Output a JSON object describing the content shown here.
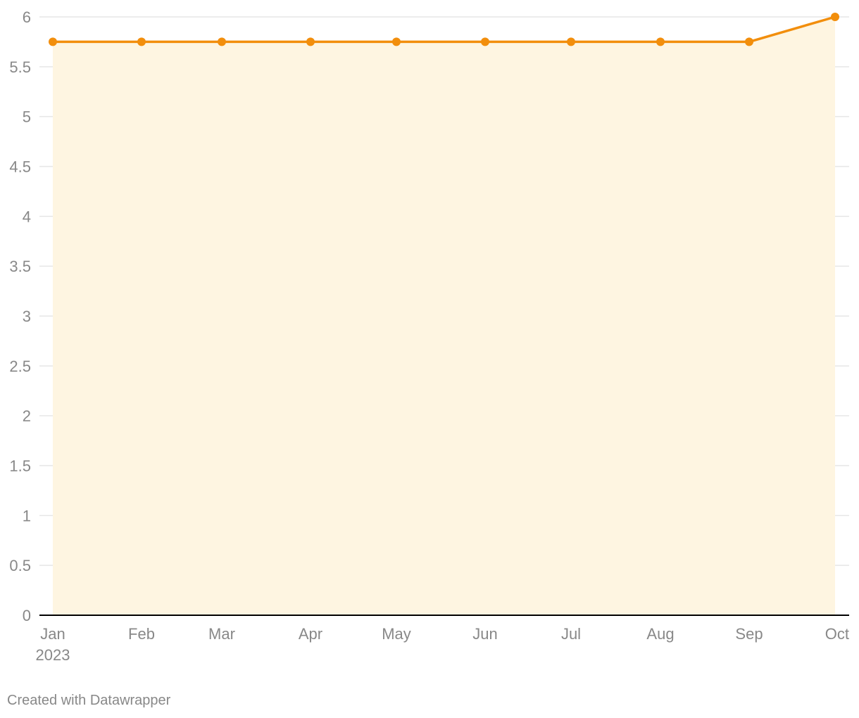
{
  "chart_data": {
    "type": "area",
    "categories": [
      "Jan",
      "Feb",
      "Mar",
      "Apr",
      "May",
      "Jun",
      "Jul",
      "Aug",
      "Sep",
      "Oct"
    ],
    "year_label": "2023",
    "series": [
      {
        "values": [
          5.75,
          5.75,
          5.75,
          5.75,
          5.75,
          5.75,
          5.75,
          5.75,
          5.75,
          6
        ]
      }
    ],
    "ylim": [
      0,
      6
    ],
    "yticks": [
      0,
      0.5,
      1,
      1.5,
      2,
      2.5,
      3,
      3.5,
      4,
      4.5,
      5,
      5.5,
      6
    ],
    "ytick_labels": [
      "0",
      "0.5",
      "1",
      "1.5",
      "2",
      "2.5",
      "3",
      "3.5",
      "4",
      "4.5",
      "5",
      "5.5",
      "6"
    ],
    "grid": true,
    "colors": {
      "line": "#f28e0c",
      "fill": "#fef5e1",
      "grid": "#e6e6e6",
      "axis": "#000000",
      "text": "#888888"
    }
  },
  "footer": {
    "credit": "Created with Datawrapper"
  }
}
